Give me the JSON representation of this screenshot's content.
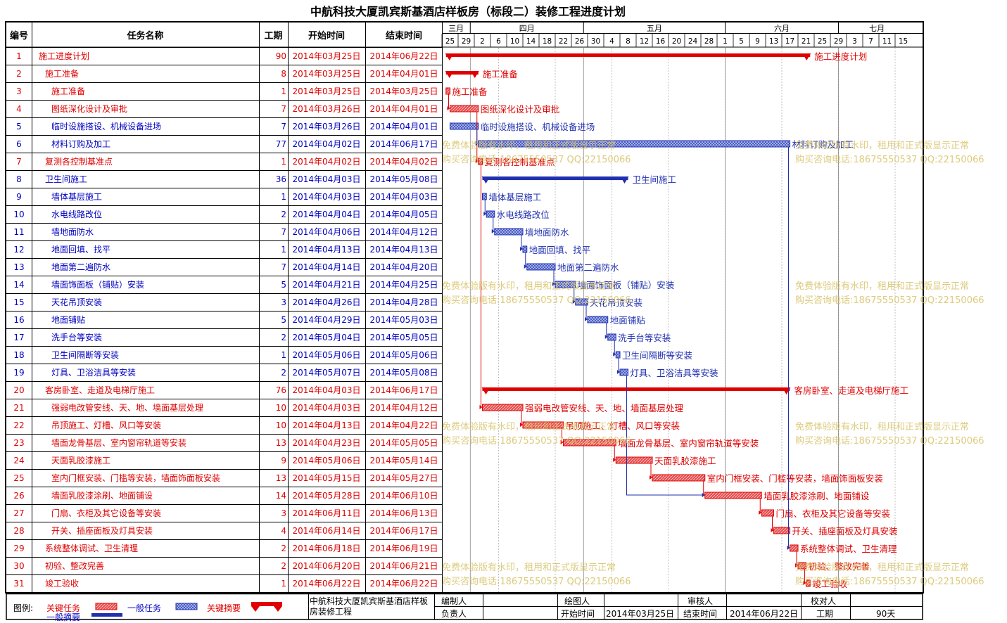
{
  "title": "中航科技大厦凯宾斯基酒店样板房（标段二）装修工程进度计划",
  "headers": {
    "id": "编号",
    "name": "任务名称",
    "duration": "工期",
    "start": "开始时间",
    "end": "结束时间"
  },
  "months": [
    "三月",
    "四月",
    "五月",
    "六月",
    "七月"
  ],
  "days": [
    "25",
    "29",
    "2",
    "6",
    "10",
    "14",
    "18",
    "22",
    "26",
    "30",
    "4",
    "8",
    "12",
    "16",
    "20",
    "24",
    "28",
    "1",
    "5",
    "9",
    "13",
    "17",
    "21",
    "25",
    "29",
    "3",
    "7",
    "11",
    "15"
  ],
  "colors": {
    "critical": "#e00000",
    "normal": "#2030b0",
    "critical_fill": "#e85050",
    "normal_fill": "#4a5ec8"
  },
  "tasks": [
    {
      "id": "1",
      "name": "施工进度计划",
      "dur": "90",
      "start": "2014年03月25日",
      "end": "2014年06月22日",
      "type": "summary",
      "color": "critical",
      "level": 0
    },
    {
      "id": "2",
      "name": "施工准备",
      "dur": "8",
      "start": "2014年03月25日",
      "end": "2014年04月01日",
      "type": "summary",
      "color": "critical",
      "level": 1
    },
    {
      "id": "3",
      "name": "施工准备",
      "dur": "1",
      "start": "2014年03月25日",
      "end": "2014年03月25日",
      "type": "task",
      "color": "critical",
      "level": 2
    },
    {
      "id": "4",
      "name": "图纸深化设计及审批",
      "dur": "7",
      "start": "2014年03月26日",
      "end": "2014年04月01日",
      "type": "task",
      "color": "critical",
      "level": 2
    },
    {
      "id": "5",
      "name": "临时设施搭设、机械设备进场",
      "dur": "7",
      "start": "2014年03月26日",
      "end": "2014年04月01日",
      "type": "task",
      "color": "normal",
      "level": 2
    },
    {
      "id": "6",
      "name": "材料订购及加工",
      "dur": "77",
      "start": "2014年04月02日",
      "end": "2014年06月17日",
      "type": "task",
      "color": "normal",
      "level": 2
    },
    {
      "id": "7",
      "name": "复测各控制基准点",
      "dur": "1",
      "start": "2014年04月02日",
      "end": "2014年04月02日",
      "type": "task",
      "color": "critical",
      "level": 1
    },
    {
      "id": "8",
      "name": "卫生间施工",
      "dur": "36",
      "start": "2014年04月03日",
      "end": "2014年05月08日",
      "type": "summary",
      "color": "normal",
      "level": 1
    },
    {
      "id": "9",
      "name": "墙体基层施工",
      "dur": "1",
      "start": "2014年04月03日",
      "end": "2014年04月03日",
      "type": "task",
      "color": "normal",
      "level": 2
    },
    {
      "id": "10",
      "name": "水电线路改位",
      "dur": "2",
      "start": "2014年04月04日",
      "end": "2014年04月05日",
      "type": "task",
      "color": "normal",
      "level": 2
    },
    {
      "id": "11",
      "name": "墙地面防水",
      "dur": "7",
      "start": "2014年04月06日",
      "end": "2014年04月12日",
      "type": "task",
      "color": "normal",
      "level": 2
    },
    {
      "id": "12",
      "name": "地面回填、找平",
      "dur": "1",
      "start": "2014年04月13日",
      "end": "2014年04月13日",
      "type": "task",
      "color": "normal",
      "level": 2
    },
    {
      "id": "13",
      "name": "地面第二遍防水",
      "dur": "7",
      "start": "2014年04月14日",
      "end": "2014年04月20日",
      "type": "task",
      "color": "normal",
      "level": 2
    },
    {
      "id": "14",
      "name": "墙面饰面板（铺贴）安装",
      "dur": "5",
      "start": "2014年04月21日",
      "end": "2014年04月25日",
      "type": "task",
      "color": "normal",
      "level": 2
    },
    {
      "id": "15",
      "name": "天花吊顶安装",
      "dur": "3",
      "start": "2014年04月26日",
      "end": "2014年04月28日",
      "type": "task",
      "color": "normal",
      "level": 2
    },
    {
      "id": "16",
      "name": "地面铺贴",
      "dur": "5",
      "start": "2014年04月29日",
      "end": "2014年05月03日",
      "type": "task",
      "color": "normal",
      "level": 2
    },
    {
      "id": "17",
      "name": "洗手台等安装",
      "dur": "2",
      "start": "2014年05月04日",
      "end": "2014年05月05日",
      "type": "task",
      "color": "normal",
      "level": 2
    },
    {
      "id": "18",
      "name": "卫生间隔断等安装",
      "dur": "1",
      "start": "2014年05月06日",
      "end": "2014年05月06日",
      "type": "task",
      "color": "normal",
      "level": 2
    },
    {
      "id": "19",
      "name": "灯具、卫浴洁具等安装",
      "dur": "2",
      "start": "2014年05月07日",
      "end": "2014年05月08日",
      "type": "task",
      "color": "normal",
      "level": 2
    },
    {
      "id": "20",
      "name": "客房卧室、走道及电梯厅施工",
      "dur": "76",
      "start": "2014年04月03日",
      "end": "2014年06月17日",
      "type": "summary",
      "color": "critical",
      "level": 1
    },
    {
      "id": "21",
      "name": "强弱电改管安线、天、地、墙面基层处理",
      "dur": "10",
      "start": "2014年04月03日",
      "end": "2014年04月12日",
      "type": "task",
      "color": "critical",
      "level": 2
    },
    {
      "id": "22",
      "name": "吊顶施工、灯槽、风口等安装",
      "dur": "10",
      "start": "2014年04月13日",
      "end": "2014年04月22日",
      "type": "task",
      "color": "critical",
      "level": 2
    },
    {
      "id": "23",
      "name": "墙面龙骨基层、室内窗帘轨道等安装",
      "dur": "13",
      "start": "2014年04月23日",
      "end": "2014年05月05日",
      "type": "task",
      "color": "critical",
      "level": 2
    },
    {
      "id": "24",
      "name": "天面乳胶漆施工",
      "dur": "9",
      "start": "2014年05月06日",
      "end": "2014年05月14日",
      "type": "task",
      "color": "critical",
      "level": 2
    },
    {
      "id": "25",
      "name": "室内门框安装、门槛等安装，墙面饰面板安装",
      "dur": "13",
      "start": "2014年05月15日",
      "end": "2014年05月27日",
      "type": "task",
      "color": "critical",
      "level": 2
    },
    {
      "id": "26",
      "name": "墙面乳胶漆涂刷、地面铺设",
      "dur": "14",
      "start": "2014年05月28日",
      "end": "2014年06月10日",
      "type": "task",
      "color": "critical",
      "level": 2
    },
    {
      "id": "27",
      "name": "门扇、衣柜及其它设备等安装",
      "dur": "3",
      "start": "2014年06月11日",
      "end": "2014年06月13日",
      "type": "task",
      "color": "critical",
      "level": 2
    },
    {
      "id": "28",
      "name": "开关、插座面板及灯具安装",
      "dur": "4",
      "start": "2014年06月14日",
      "end": "2014年06月17日",
      "type": "task",
      "color": "critical",
      "level": 2
    },
    {
      "id": "29",
      "name": "系统整体调试、卫生清理",
      "dur": "2",
      "start": "2014年06月18日",
      "end": "2014年06月19日",
      "type": "task",
      "color": "critical",
      "level": 1
    },
    {
      "id": "30",
      "name": "初验、整改完善",
      "dur": "2",
      "start": "2014年06月20日",
      "end": "2014年06月21日",
      "type": "task",
      "color": "critical",
      "level": 1
    },
    {
      "id": "31",
      "name": "竣工验收",
      "dur": "1",
      "start": "2014年06月22日",
      "end": "2014年06月22日",
      "type": "task",
      "color": "critical",
      "level": 1
    }
  ],
  "chart_data": {
    "type": "gantt",
    "title": "中航科技大厦凯宾斯基酒店样板房（标段二）装修工程进度计划",
    "xaxis_start": "2014-03-24",
    "xaxis_end": "2014-07-18",
    "bars": [
      {
        "id": 1,
        "start": "2014-03-25",
        "end": "2014-06-22"
      },
      {
        "id": 2,
        "start": "2014-03-25",
        "end": "2014-04-01"
      },
      {
        "id": 3,
        "start": "2014-03-25",
        "end": "2014-03-25"
      },
      {
        "id": 4,
        "start": "2014-03-26",
        "end": "2014-04-01"
      },
      {
        "id": 5,
        "start": "2014-03-26",
        "end": "2014-04-01"
      },
      {
        "id": 6,
        "start": "2014-04-02",
        "end": "2014-06-17"
      },
      {
        "id": 7,
        "start": "2014-04-02",
        "end": "2014-04-02"
      },
      {
        "id": 8,
        "start": "2014-04-03",
        "end": "2014-05-08"
      },
      {
        "id": 9,
        "start": "2014-04-03",
        "end": "2014-04-03"
      },
      {
        "id": 10,
        "start": "2014-04-04",
        "end": "2014-04-05"
      },
      {
        "id": 11,
        "start": "2014-04-06",
        "end": "2014-04-12"
      },
      {
        "id": 12,
        "start": "2014-04-13",
        "end": "2014-04-13"
      },
      {
        "id": 13,
        "start": "2014-04-14",
        "end": "2014-04-20"
      },
      {
        "id": 14,
        "start": "2014-04-21",
        "end": "2014-04-25"
      },
      {
        "id": 15,
        "start": "2014-04-26",
        "end": "2014-04-28"
      },
      {
        "id": 16,
        "start": "2014-04-29",
        "end": "2014-05-03"
      },
      {
        "id": 17,
        "start": "2014-05-04",
        "end": "2014-05-05"
      },
      {
        "id": 18,
        "start": "2014-05-06",
        "end": "2014-05-06"
      },
      {
        "id": 19,
        "start": "2014-05-07",
        "end": "2014-05-08"
      },
      {
        "id": 20,
        "start": "2014-04-03",
        "end": "2014-06-17"
      },
      {
        "id": 21,
        "start": "2014-04-03",
        "end": "2014-04-12"
      },
      {
        "id": 22,
        "start": "2014-04-13",
        "end": "2014-04-22"
      },
      {
        "id": 23,
        "start": "2014-04-23",
        "end": "2014-05-05"
      },
      {
        "id": 24,
        "start": "2014-05-06",
        "end": "2014-05-14"
      },
      {
        "id": 25,
        "start": "2014-05-15",
        "end": "2014-05-27"
      },
      {
        "id": 26,
        "start": "2014-05-28",
        "end": "2014-06-10"
      },
      {
        "id": 27,
        "start": "2014-06-11",
        "end": "2014-06-13"
      },
      {
        "id": 28,
        "start": "2014-06-14",
        "end": "2014-06-17"
      },
      {
        "id": 29,
        "start": "2014-06-18",
        "end": "2014-06-19"
      },
      {
        "id": 30,
        "start": "2014-06-20",
        "end": "2014-06-21"
      },
      {
        "id": 31,
        "start": "2014-06-22",
        "end": "2014-06-22"
      }
    ]
  },
  "legend": {
    "label": "图例:",
    "critical_task": "关键任务",
    "normal_task": "一般任务",
    "critical_summary": "关键摘要",
    "normal_summary": "一般摘要"
  },
  "footer": {
    "project": "中航科技大厦凯宾斯基酒店样板房装修工程",
    "compiler_label": "编制人",
    "drawer_label": "绘图人",
    "auditor_label": "审核人",
    "checker_label": "校对人",
    "owner_label": "负责人",
    "start_label": "开始时间",
    "start_value": "2014年03月25日",
    "end_label": "结束时间",
    "end_value": "2014年06月22日",
    "duration_label": "工期",
    "duration_value": "90天"
  },
  "watermark": {
    "line1": "免费体验版有水印，租用和正式版显示正常",
    "line2": "购买咨询电话:18675550537 QQ:22150066"
  }
}
